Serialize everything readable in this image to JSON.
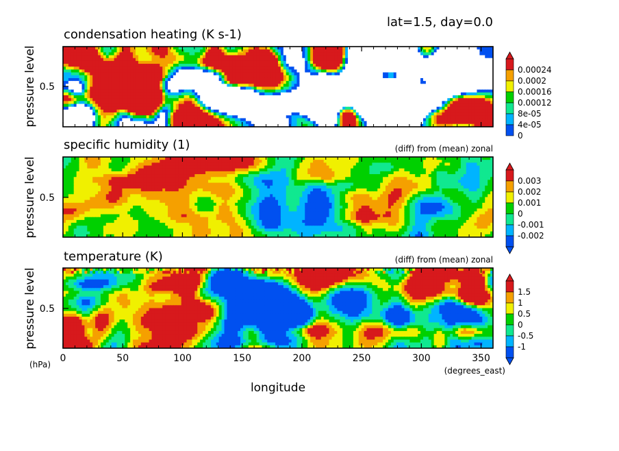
{
  "header": {
    "info": "lat=1.5, day=0.0"
  },
  "chart_data": [
    {
      "type": "heatmap",
      "title": "condensation heating (K s-1)",
      "subtitle": "",
      "ylabel": "pressure level",
      "y_tick": "0.5",
      "xlim": [
        0,
        360
      ],
      "colorbar": {
        "labels": [
          "0.00024",
          "0.0002",
          "0.00016",
          "0.00012",
          "8e-05",
          "4e-05",
          "0"
        ],
        "colors": [
          "#d7191c",
          "#f5a000",
          "#f0f000",
          "#00d000",
          "#10e890",
          "#00b4ff",
          "#0050f0"
        ],
        "low_color": "#ffffff"
      }
    },
    {
      "type": "heatmap",
      "title": "specific humidity (1)",
      "subtitle": "(diff) from (mean) zonal",
      "ylabel": "pressure level",
      "y_tick": "0.5",
      "xlim": [
        0,
        360
      ],
      "colorbar": {
        "labels": [
          "0.003",
          "0.002",
          "0.001",
          "0",
          "-0.001",
          "-0.002"
        ],
        "colors": [
          "#d7191c",
          "#f5a000",
          "#f0f000",
          "#00d000",
          "#10e890",
          "#00b4ff",
          "#0050f0"
        ]
      }
    },
    {
      "type": "heatmap",
      "title": "temperature (K)",
      "subtitle": "(diff) from (mean) zonal",
      "ylabel": "pressure level",
      "y_tick": "0.5",
      "xlim": [
        0,
        360
      ],
      "x_ticks": [
        "0",
        "50",
        "100",
        "150",
        "200",
        "250",
        "300",
        "350"
      ],
      "x_tick_values": [
        0,
        50,
        100,
        150,
        200,
        250,
        300,
        350
      ],
      "xlabel": "longitude",
      "xunit": "(degrees_east)",
      "yunit": "(hPa)",
      "colorbar": {
        "labels": [
          "1.5",
          "1",
          "0.5",
          "0",
          "-0.5",
          "-1"
        ],
        "colors": [
          "#d7191c",
          "#f5a000",
          "#f0f000",
          "#00d000",
          "#10e890",
          "#00b4ff",
          "#0050f0"
        ]
      }
    }
  ]
}
